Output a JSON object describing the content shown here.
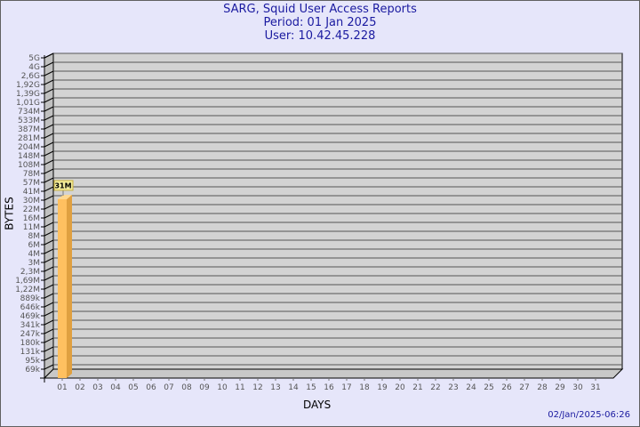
{
  "chart_data": {
    "type": "bar",
    "title": "SARG, Squid User Access Reports",
    "subtitle_period": "Period: 01 Jan 2025",
    "subtitle_user": "User: 10.42.45.228",
    "xlabel": "DAYS",
    "ylabel": "BYTES",
    "y_scale": "log",
    "grid": true,
    "y_tick_labels": [
      "5G",
      "4G",
      "2,6G",
      "1,92G",
      "1,39G",
      "1,01G",
      "734M",
      "533M",
      "387M",
      "281M",
      "204M",
      "148M",
      "108M",
      "78M",
      "57M",
      "41M",
      "30M",
      "22M",
      "16M",
      "11M",
      "8M",
      "6M",
      "4M",
      "3M",
      "2,3M",
      "1,69M",
      "1,22M",
      "889k",
      "646k",
      "469k",
      "341k",
      "247k",
      "180k",
      "131k",
      "95k",
      "69k"
    ],
    "categories": [
      "01",
      "02",
      "03",
      "04",
      "05",
      "06",
      "07",
      "08",
      "09",
      "10",
      "11",
      "12",
      "13",
      "14",
      "15",
      "16",
      "17",
      "18",
      "19",
      "20",
      "21",
      "22",
      "23",
      "24",
      "25",
      "26",
      "27",
      "28",
      "29",
      "30",
      "31"
    ],
    "series": [
      {
        "values": [
          {
            "day": "01",
            "bytes": 31000000,
            "label": "31M"
          }
        ]
      }
    ],
    "bar_color": "#ffc060",
    "bar_side_color": "#e0a040",
    "wall_color": "#d3d3d3"
  },
  "footer": {
    "timestamp": "02/Jan/2025-06:26"
  }
}
